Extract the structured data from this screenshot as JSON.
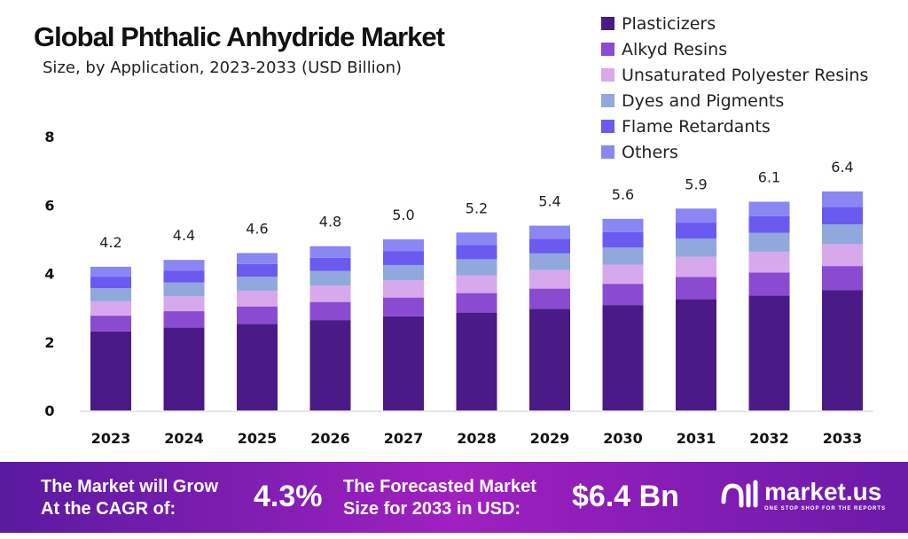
{
  "chart_data": {
    "type": "bar",
    "stacked": true,
    "title": "Global Phthalic Anhydride Market",
    "subtitle": "Size, by Application, 2023-2033 (USD Billion)",
    "categories": [
      "2023",
      "2024",
      "2025",
      "2026",
      "2027",
      "2028",
      "2029",
      "2030",
      "2031",
      "2032",
      "2033"
    ],
    "totals": [
      "4.2",
      "4.4",
      "4.6",
      "4.8",
      "5.0",
      "5.2",
      "5.4",
      "5.6",
      "5.9",
      "6.1",
      "6.4"
    ],
    "series": [
      {
        "name": "Plasticizers",
        "color": "#4a1a86",
        "values": [
          2.31,
          2.42,
          2.53,
          2.64,
          2.75,
          2.86,
          2.97,
          3.08,
          3.25,
          3.36,
          3.52
        ]
      },
      {
        "name": "Alkyd Resins",
        "color": "#8a4bd0",
        "values": [
          0.46,
          0.48,
          0.51,
          0.53,
          0.55,
          0.57,
          0.59,
          0.62,
          0.65,
          0.67,
          0.7
        ]
      },
      {
        "name": "Unsaturated Polyester Resins",
        "color": "#d8a8ec",
        "values": [
          0.42,
          0.44,
          0.46,
          0.48,
          0.5,
          0.52,
          0.54,
          0.56,
          0.59,
          0.61,
          0.64
        ]
      },
      {
        "name": "Dyes and Pigments",
        "color": "#90a8dc",
        "values": [
          0.38,
          0.4,
          0.41,
          0.43,
          0.45,
          0.47,
          0.49,
          0.5,
          0.53,
          0.55,
          0.58
        ]
      },
      {
        "name": "Flame Retardants",
        "color": "#6a5af0",
        "values": [
          0.34,
          0.35,
          0.37,
          0.38,
          0.4,
          0.42,
          0.43,
          0.45,
          0.47,
          0.49,
          0.51
        ]
      },
      {
        "name": "Others",
        "color": "#8a86f4",
        "values": [
          0.29,
          0.31,
          0.32,
          0.34,
          0.35,
          0.36,
          0.38,
          0.39,
          0.41,
          0.42,
          0.45
        ]
      }
    ],
    "yticks": [
      "0",
      "2",
      "4",
      "6",
      "8"
    ],
    "ylim": [
      0,
      8
    ],
    "grid": false,
    "legend": "top-right"
  },
  "footer": {
    "cagr_label_1": "The Market will Grow",
    "cagr_label_2": "At the CAGR of:",
    "cagr_value": "4.3%",
    "forecast_label_1": "The Forecasted Market",
    "forecast_label_2": "Size for 2033 in USD:",
    "forecast_value": "$6.4 Bn",
    "brand": "market.us",
    "brand_tagline": "ONE STOP SHOP FOR THE REPORTS"
  }
}
